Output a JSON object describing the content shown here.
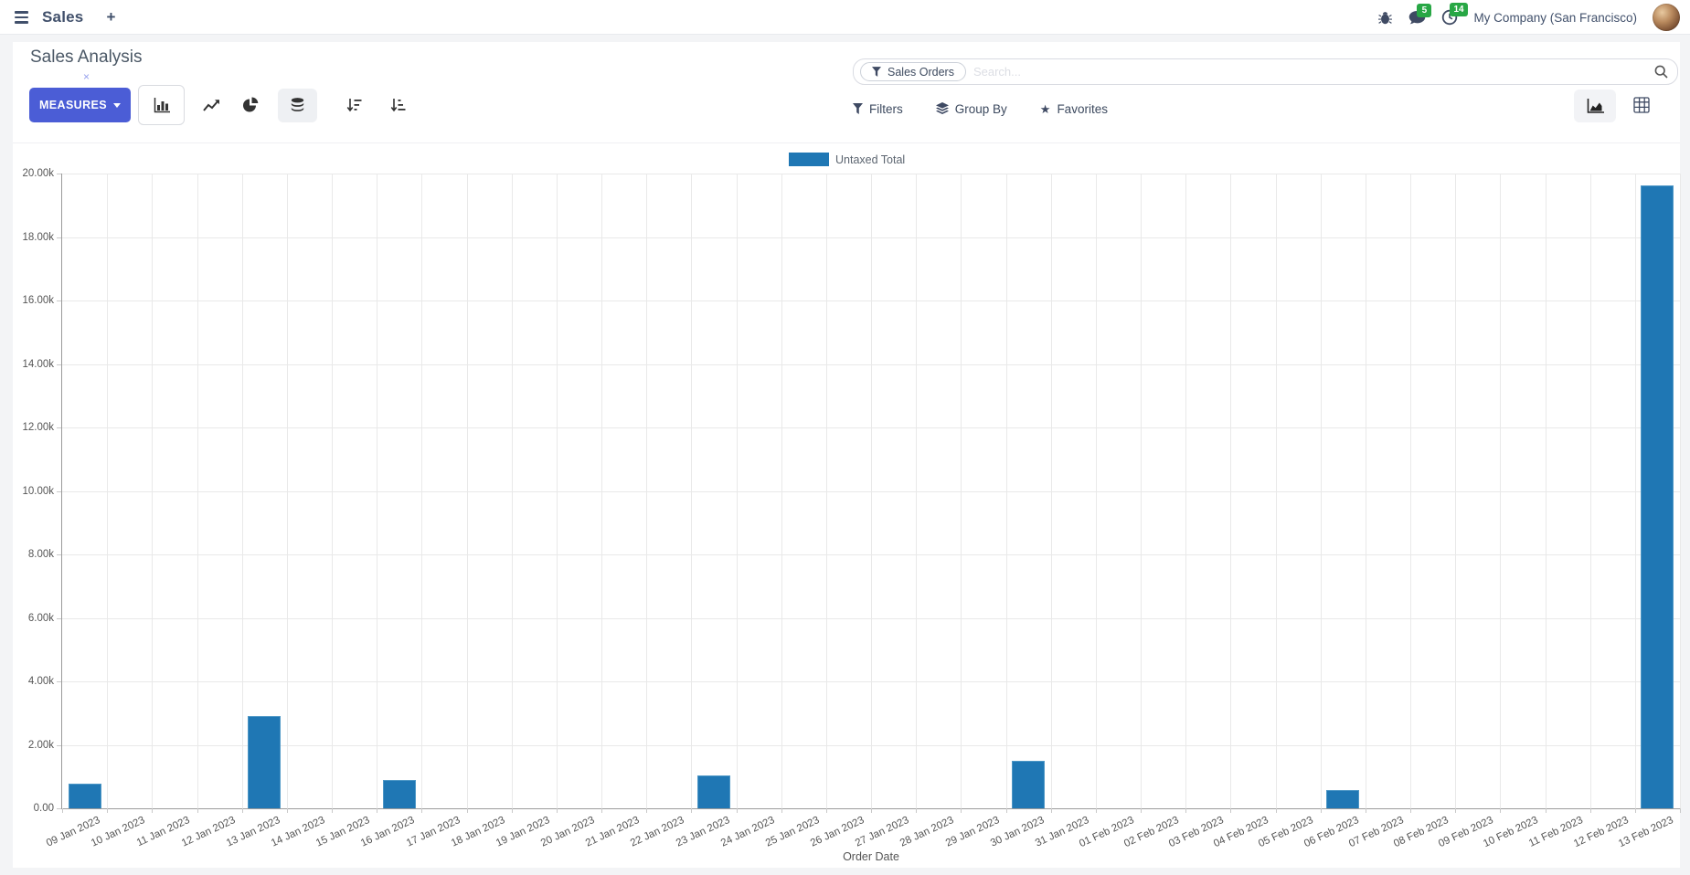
{
  "navbar": {
    "app_name": "Sales",
    "plus_label": "+",
    "message_badge": "5",
    "activity_badge": "14",
    "company_name": "My Company (San Francisco)"
  },
  "control_panel": {
    "title": "Sales Analysis",
    "measures_button": "MEASURES",
    "search": {
      "facet_label": "Sales Orders",
      "facet_remove": "×",
      "placeholder": "Search...",
      "filters_label": "Filters",
      "group_by_label": "Group By",
      "favorites_label": "Favorites"
    }
  },
  "colors": {
    "primary_button": "#4b5dd6",
    "bar_series": "#1f77b4",
    "badge_green": "#28a745",
    "navbar_text": "#41506b"
  },
  "chart_data": {
    "type": "bar",
    "title": "",
    "xlabel": "Order Date",
    "ylabel": "",
    "ylim": [
      0,
      20000
    ],
    "grid": true,
    "legend_position": "top",
    "legend": [
      {
        "label": "Untaxed Total",
        "color": "#1f77b4"
      }
    ],
    "ytick_labels": [
      "0.00",
      "2.00k",
      "4.00k",
      "6.00k",
      "8.00k",
      "10.00k",
      "12.00k",
      "14.00k",
      "16.00k",
      "18.00k",
      "20.00k"
    ],
    "categories": [
      "09 Jan 2023",
      "10 Jan 2023",
      "11 Jan 2023",
      "12 Jan 2023",
      "13 Jan 2023",
      "14 Jan 2023",
      "15 Jan 2023",
      "16 Jan 2023",
      "17 Jan 2023",
      "18 Jan 2023",
      "19 Jan 2023",
      "20 Jan 2023",
      "21 Jan 2023",
      "22 Jan 2023",
      "23 Jan 2023",
      "24 Jan 2023",
      "25 Jan 2023",
      "26 Jan 2023",
      "27 Jan 2023",
      "28 Jan 2023",
      "29 Jan 2023",
      "30 Jan 2023",
      "31 Jan 2023",
      "01 Feb 2023",
      "02 Feb 2023",
      "03 Feb 2023",
      "04 Feb 2023",
      "05 Feb 2023",
      "06 Feb 2023",
      "07 Feb 2023",
      "08 Feb 2023",
      "09 Feb 2023",
      "10 Feb 2023",
      "11 Feb 2023",
      "12 Feb 2023",
      "13 Feb 2023"
    ],
    "values": [
      780,
      0,
      0,
      0,
      2900,
      0,
      0,
      890,
      0,
      0,
      0,
      0,
      0,
      0,
      1030,
      0,
      0,
      0,
      0,
      0,
      0,
      1490,
      0,
      0,
      0,
      0,
      0,
      0,
      580,
      0,
      0,
      0,
      0,
      0,
      0,
      19630
    ]
  }
}
